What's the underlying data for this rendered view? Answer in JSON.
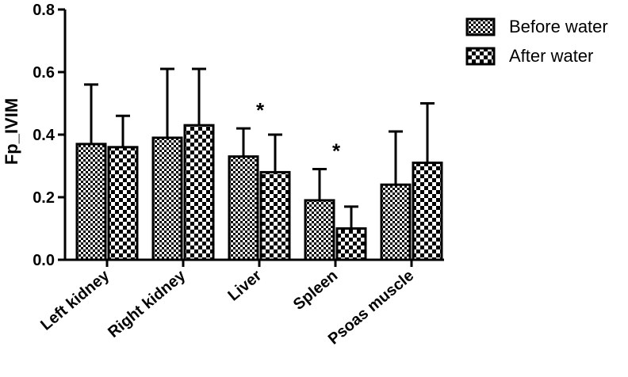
{
  "chart_data": {
    "type": "bar",
    "ylabel": "Fp_IVIM",
    "ylim": [
      0,
      0.8
    ],
    "yticks": [
      "0.0",
      "0.2",
      "0.4",
      "0.6",
      "0.8"
    ],
    "categories": [
      "Left kidney",
      "Right kidney",
      "Liver",
      "Spleen",
      "Psoas muscle"
    ],
    "series": [
      {
        "name": "Before water",
        "pattern": "fine-checker",
        "values": [
          0.37,
          0.39,
          0.33,
          0.19,
          0.24
        ],
        "errors": [
          0.19,
          0.22,
          0.09,
          0.1,
          0.17
        ]
      },
      {
        "name": "After water",
        "pattern": "coarse-checker",
        "values": [
          0.36,
          0.43,
          0.28,
          0.1,
          0.31
        ],
        "errors": [
          0.1,
          0.18,
          0.12,
          0.07,
          0.19
        ]
      }
    ],
    "annotations": [
      {
        "category": "Liver",
        "text": "*"
      },
      {
        "category": "Spleen",
        "text": "*"
      }
    ],
    "legend_position": "top-right",
    "grid": false
  }
}
